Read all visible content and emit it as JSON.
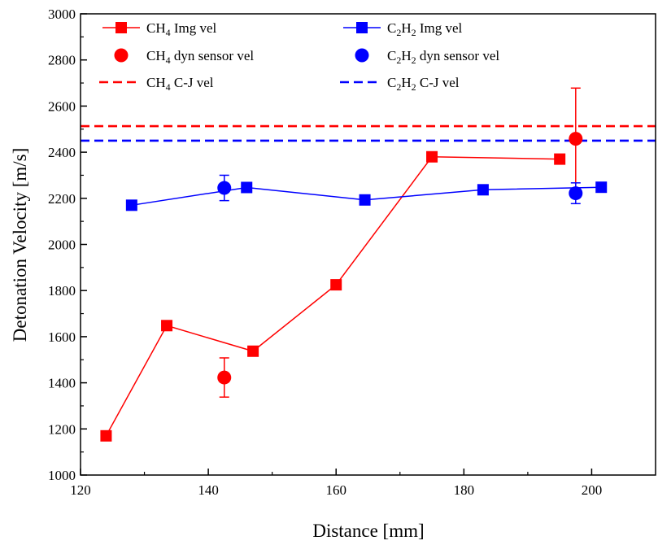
{
  "chart_data": {
    "type": "scatter",
    "title": "",
    "xlabel": "Distance [mm]",
    "ylabel": "Detonation Velocity [m/s]",
    "xlim": [
      120,
      210
    ],
    "ylim": [
      1000,
      3000
    ],
    "x_ticks": [
      120,
      140,
      160,
      180,
      200
    ],
    "y_ticks": [
      1000,
      1200,
      1400,
      1600,
      1800,
      2000,
      2200,
      2400,
      2600,
      2800,
      3000
    ],
    "grid": false,
    "legend_position": "top",
    "colors": {
      "ch4": "#ff0000",
      "c2h2": "#0000ff"
    },
    "series": [
      {
        "id": "ch4_img",
        "label": [
          "CH",
          "4",
          " Img vel"
        ],
        "color": "#ff0000",
        "marker": "square",
        "line": "solid",
        "x": [
          124,
          133.5,
          147,
          160,
          175,
          195
        ],
        "y": [
          1170,
          1648,
          1537,
          1825,
          2380,
          2370
        ]
      },
      {
        "id": "c2h2_img",
        "label": [
          "C",
          "2",
          "H",
          "2",
          " Img vel"
        ],
        "color": "#0000ff",
        "marker": "square",
        "line": "solid",
        "x": [
          128,
          146,
          164.5,
          183,
          201.5
        ],
        "y": [
          2170,
          2247,
          2193,
          2237,
          2248
        ]
      },
      {
        "id": "ch4_dyn",
        "label": [
          "CH",
          "4",
          " dyn sensor vel"
        ],
        "color": "#ff0000",
        "marker": "circle",
        "line": "none",
        "x": [
          142.5,
          197.5
        ],
        "y": [
          1423,
          2458
        ],
        "err": [
          85,
          220
        ]
      },
      {
        "id": "c2h2_dyn",
        "label": [
          "C",
          "2",
          "H",
          "2",
          " dyn sensor vel"
        ],
        "color": "#0000ff",
        "marker": "circle",
        "line": "none",
        "x": [
          142.5,
          197.5
        ],
        "y": [
          2245,
          2222
        ],
        "err": [
          55,
          45
        ]
      },
      {
        "id": "ch4_cj",
        "label": [
          "CH",
          "4",
          " C-J vel"
        ],
        "color": "#ff0000",
        "marker": "none",
        "line": "dashed",
        "y_const": 2513
      },
      {
        "id": "c2h2_cj",
        "label": [
          "C",
          "2",
          "H",
          "2",
          " C-J vel"
        ],
        "color": "#0000ff",
        "marker": "none",
        "line": "dashed",
        "y_const": 2450
      }
    ]
  }
}
